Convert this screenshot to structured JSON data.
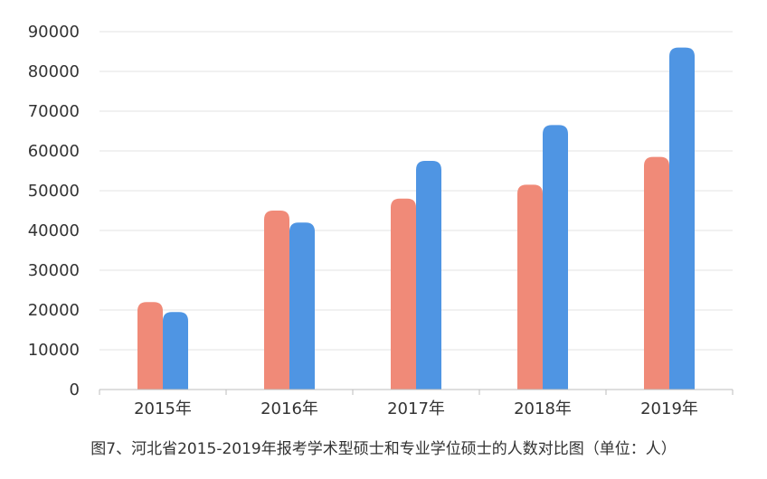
{
  "chart_data": {
    "type": "bar",
    "categories": [
      "2015年",
      "2016年",
      "2017年",
      "2018年",
      "2019年"
    ],
    "series": [
      {
        "values": [
          22000,
          45000,
          48000,
          51500,
          58500
        ],
        "color": "#F08A78"
      },
      {
        "values": [
          19500,
          42000,
          57500,
          66500,
          86000
        ],
        "color": "#4F95E3"
      }
    ],
    "ylim": [
      0,
      90000
    ],
    "yticks": [
      0,
      10000,
      20000,
      30000,
      40000,
      50000,
      60000,
      70000,
      80000,
      90000
    ],
    "grid": true,
    "legend": "none"
  },
  "caption": "图7、河北省2015-2019年报考学术型硕士和专业学位硕士的人数对比图（单位：人）"
}
